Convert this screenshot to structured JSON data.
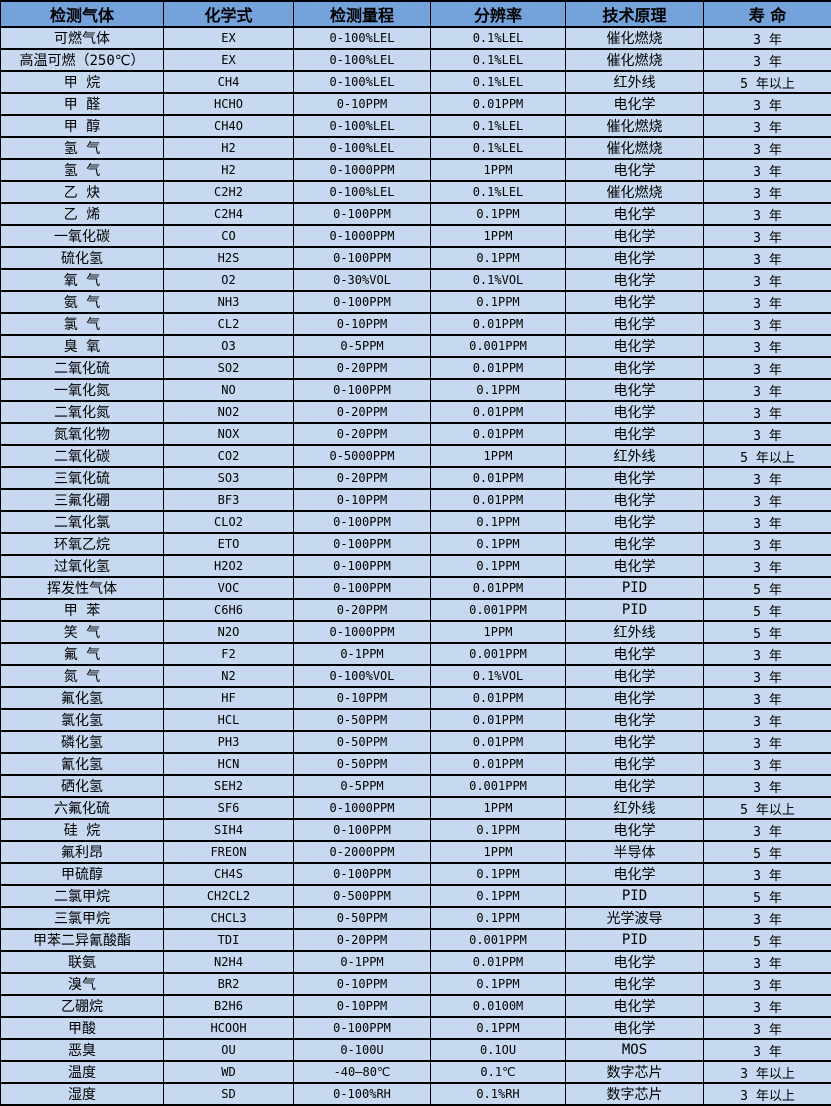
{
  "table": {
    "header_bg": "#74A3DB",
    "row_bg": "#C6D9F1",
    "border_color": "#000000",
    "columns": [
      "检测气体",
      "化学式",
      "检测量程",
      "分辨率",
      "技术原理",
      "寿 命"
    ],
    "rows": [
      [
        "可燃气体",
        "EX",
        "0-100%LEL",
        "0.1%LEL",
        "催化燃烧",
        "3 年"
      ],
      [
        "高温可燃（250℃）",
        "EX",
        "0-100%LEL",
        "0.1%LEL",
        "催化燃烧",
        "3 年"
      ],
      [
        "甲 烷",
        "CH4",
        "0-100%LEL",
        "0.1%LEL",
        "红外线",
        "5 年以上"
      ],
      [
        "甲 醛",
        "HCHO",
        "0-10PPM",
        "0.01PPM",
        "电化学",
        "3 年"
      ],
      [
        "甲 醇",
        "CH4O",
        "0-100%LEL",
        "0.1%LEL",
        "催化燃烧",
        "3 年"
      ],
      [
        "氢 气",
        "H2",
        "0-100%LEL",
        "0.1%LEL",
        "催化燃烧",
        "3 年"
      ],
      [
        "氢 气",
        "H2",
        "0-1000PPM",
        "1PPM",
        "电化学",
        "3 年"
      ],
      [
        "乙 炔",
        "C2H2",
        "0-100%LEL",
        "0.1%LEL",
        "催化燃烧",
        "3 年"
      ],
      [
        "乙 烯",
        "C2H4",
        "0-100PPM",
        "0.1PPM",
        "电化学",
        "3 年"
      ],
      [
        "一氧化碳",
        "CO",
        "0-1000PPM",
        "1PPM",
        "电化学",
        "3 年"
      ],
      [
        "硫化氢",
        "H2S",
        "0-100PPM",
        "0.1PPM",
        "电化学",
        "3 年"
      ],
      [
        "氧 气",
        "O2",
        "0-30%VOL",
        "0.1%VOL",
        "电化学",
        "3 年"
      ],
      [
        "氨 气",
        "NH3",
        "0-100PPM",
        "0.1PPM",
        "电化学",
        "3 年"
      ],
      [
        "氯 气",
        "CL2",
        "0-10PPM",
        "0.01PPM",
        "电化学",
        "3 年"
      ],
      [
        "臭 氧",
        "O3",
        "0-5PPM",
        "0.001PPM",
        "电化学",
        "3 年"
      ],
      [
        "二氧化硫",
        "SO2",
        "0-20PPM",
        "0.01PPM",
        "电化学",
        "3 年"
      ],
      [
        "一氧化氮",
        "NO",
        "0-100PPM",
        "0.1PPM",
        "电化学",
        "3 年"
      ],
      [
        "二氧化氮",
        "NO2",
        "0-20PPM",
        "0.01PPM",
        "电化学",
        "3 年"
      ],
      [
        "氮氧化物",
        "NOX",
        "0-20PPM",
        "0.01PPM",
        "电化学",
        "3 年"
      ],
      [
        "二氧化碳",
        "CO2",
        "0-5000PPM",
        "1PPM",
        "红外线",
        "5 年以上"
      ],
      [
        "三氧化硫",
        "SO3",
        "0-20PPM",
        "0.01PPM",
        "电化学",
        "3 年"
      ],
      [
        "三氟化硼",
        "BF3",
        "0-10PPM",
        "0.01PPM",
        "电化学",
        "3 年"
      ],
      [
        "二氧化氯",
        "CLO2",
        "0-100PPM",
        "0.1PPM",
        "电化学",
        "3 年"
      ],
      [
        "环氧乙烷",
        "ETO",
        "0-100PPM",
        "0.1PPM",
        "电化学",
        "3 年"
      ],
      [
        "过氧化氢",
        "H2O2",
        "0-100PPM",
        "0.1PPM",
        "电化学",
        "3 年"
      ],
      [
        "挥发性气体",
        "VOC",
        "0-100PPM",
        "0.01PPM",
        "PID",
        "5 年"
      ],
      [
        "甲 苯",
        "C6H6",
        "0-20PPM",
        "0.001PPM",
        "PID",
        "5 年"
      ],
      [
        "笑 气",
        "N2O",
        "0-1000PPM",
        "1PPM",
        "红外线",
        "5 年"
      ],
      [
        "氟 气",
        "F2",
        "0-1PPM",
        "0.001PPM",
        "电化学",
        "3 年"
      ],
      [
        "氮 气",
        "N2",
        "0-100%VOL",
        "0.1%VOL",
        "电化学",
        "3 年"
      ],
      [
        "氟化氢",
        "HF",
        "0-10PPM",
        "0.01PPM",
        "电化学",
        "3 年"
      ],
      [
        "氯化氢",
        "HCL",
        "0-50PPM",
        "0.01PPM",
        "电化学",
        "3 年"
      ],
      [
        "磷化氢",
        "PH3",
        "0-50PPM",
        "0.01PPM",
        "电化学",
        "3 年"
      ],
      [
        "氰化氢",
        "HCN",
        "0-50PPM",
        "0.01PPM",
        "电化学",
        "3 年"
      ],
      [
        "硒化氢",
        "SEH2",
        "0-5PPM",
        "0.001PPM",
        "电化学",
        "3 年"
      ],
      [
        "六氟化硫",
        "SF6",
        "0-1000PPM",
        "1PPM",
        "红外线",
        "5 年以上"
      ],
      [
        "硅 烷",
        "SIH4",
        "0-100PPM",
        "0.1PPM",
        "电化学",
        "3 年"
      ],
      [
        "氟利昂",
        "FREON",
        "0-2000PPM",
        "1PPM",
        "半导体",
        "5 年"
      ],
      [
        "甲硫醇",
        "CH4S",
        "0-100PPM",
        "0.1PPM",
        "电化学",
        "3 年"
      ],
      [
        "二氯甲烷",
        "CH2CL2",
        "0-500PPM",
        "0.1PPM",
        "PID",
        "5 年"
      ],
      [
        "三氯甲烷",
        "CHCL3",
        "0-50PPM",
        "0.1PPM",
        "光学波导",
        "3 年"
      ],
      [
        "甲苯二异氰酸酯",
        "TDI",
        "0-20PPM",
        "0.001PPM",
        "PID",
        "5 年"
      ],
      [
        "联氨",
        "N2H4",
        "0-1PPM",
        "0.01PPM",
        "电化学",
        "3 年"
      ],
      [
        "溴气",
        "BR2",
        "0-10PPM",
        "0.1PPM",
        "电化学",
        "3 年"
      ],
      [
        "乙硼烷",
        "B2H6",
        "0-10PPM",
        "0.0100M",
        "电化学",
        "3 年"
      ],
      [
        "甲酸",
        "HCOOH",
        "0-100PPM",
        "0.1PPM",
        "电化学",
        "3 年"
      ],
      [
        "恶臭",
        "OU",
        "0-100U",
        "0.1OU",
        "MOS",
        "3 年"
      ],
      [
        "温度",
        "WD",
        "-40—80℃",
        "0.1℃",
        "数字芯片",
        "3 年以上"
      ],
      [
        "湿度",
        "SD",
        "0-100%RH",
        "0.1%RH",
        "数字芯片",
        "3 年以上"
      ]
    ]
  }
}
